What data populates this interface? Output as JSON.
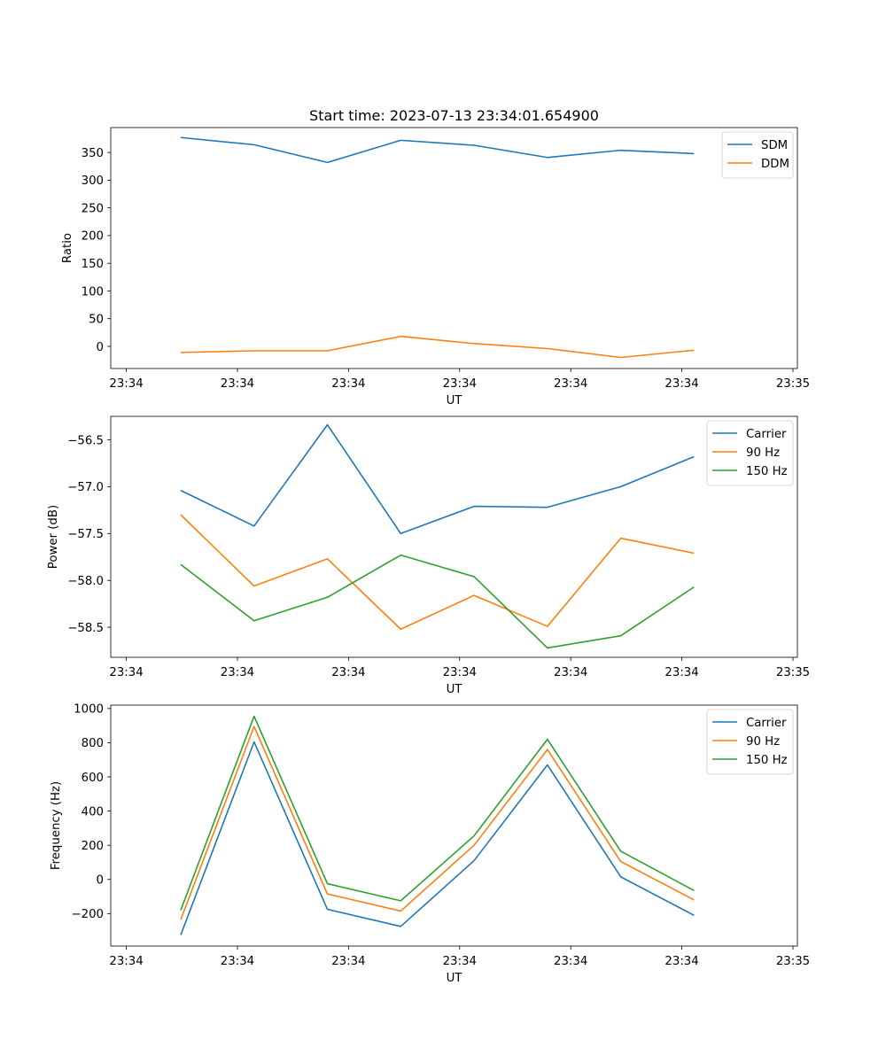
{
  "chart_data": {
    "title": "Start time: 2023-07-13 23:34:01.654900",
    "x_tick_labels": [
      "23:34",
      "23:34",
      "23:34",
      "23:34",
      "23:34",
      "23:34",
      "23:35"
    ],
    "x_tick_times_s": [
      0,
      10,
      20,
      30,
      40,
      50,
      60
    ],
    "x_range_s": [
      -1.4,
      60.4
    ],
    "sample_times_s": [
      4.9,
      11.5,
      18.1,
      24.7,
      31.3,
      37.9,
      44.5,
      51.1
    ],
    "charts": [
      {
        "type": "line",
        "name": "ratio",
        "xlabel": "UT",
        "ylabel": "Ratio",
        "ylim": [
          -40,
          395
        ],
        "yticks": [
          0,
          50,
          100,
          150,
          200,
          250,
          300,
          350
        ],
        "series": [
          {
            "name": "SDM",
            "color": "#1f77b4",
            "values": [
              377,
              364,
              332,
              372,
              363,
              341,
              354,
              348
            ]
          },
          {
            "name": "DDM",
            "color": "#ff7f0e",
            "values": [
              -11,
              -8,
              -8,
              18,
              5,
              -4,
              -20,
              -7
            ]
          }
        ]
      },
      {
        "type": "line",
        "name": "power",
        "xlabel": "UT",
        "ylabel": "Power (dB)",
        "ylim": [
          -58.82,
          -56.25
        ],
        "yticks": [
          -58.5,
          -58.0,
          -57.5,
          -57.0,
          -56.5
        ],
        "ytick_labels": [
          "−58.5",
          "−58.0",
          "−57.5",
          "−57.0",
          "−56.5"
        ],
        "series": [
          {
            "name": "Carrier",
            "color": "#1f77b4",
            "values": [
              -57.04,
              -57.42,
              -56.34,
              -57.5,
              -57.21,
              -57.22,
              -57.0,
              -56.68
            ]
          },
          {
            "name": "90 Hz",
            "color": "#ff7f0e",
            "values": [
              -57.3,
              -58.06,
              -57.77,
              -58.52,
              -58.16,
              -58.49,
              -57.55,
              -57.71
            ]
          },
          {
            "name": "150 Hz",
            "color": "#2ca02c",
            "values": [
              -57.83,
              -58.43,
              -58.18,
              -57.73,
              -57.96,
              -58.72,
              -58.59,
              -58.07
            ]
          }
        ]
      },
      {
        "type": "line",
        "name": "frequency",
        "xlabel": "UT",
        "ylabel": "Frequency (Hz)",
        "ylim": [
          -390,
          1020
        ],
        "yticks": [
          -200,
          0,
          200,
          400,
          600,
          800,
          1000
        ],
        "ytick_labels": [
          "−200",
          "0",
          "200",
          "400",
          "600",
          "800",
          "1000"
        ],
        "series": [
          {
            "name": "Carrier",
            "color": "#1f77b4",
            "values": [
              -325,
              805,
              -175,
              -275,
              110,
              670,
              15,
              -210
            ]
          },
          {
            "name": "90 Hz",
            "color": "#ff7f0e",
            "values": [
              -235,
              895,
              -85,
              -185,
              200,
              760,
              105,
              -120
            ]
          },
          {
            "name": "150 Hz",
            "color": "#2ca02c",
            "values": [
              -180,
              955,
              -25,
              -125,
              255,
              820,
              165,
              -65
            ]
          }
        ]
      }
    ]
  }
}
